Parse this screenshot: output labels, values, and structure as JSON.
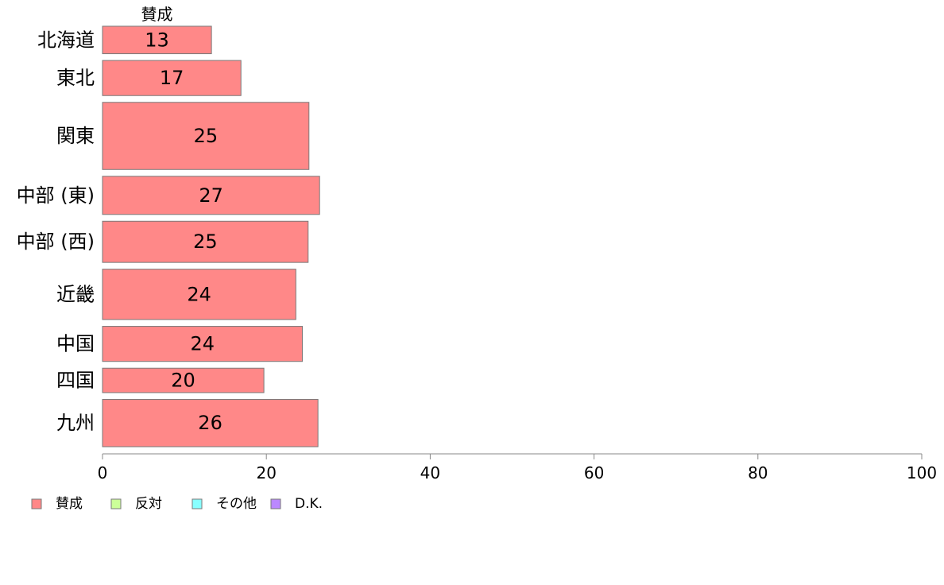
{
  "chart_data": {
    "type": "bar",
    "orientation": "horizontal",
    "stacked": true,
    "categories": [
      "北海道",
      "東北",
      "関東",
      "中部 (東)",
      "中部 (西)",
      "近畿",
      "中国",
      "四国",
      "九州"
    ],
    "category_weights": [
      0.9,
      1.15,
      2.2,
      1.25,
      1.35,
      1.65,
      1.15,
      0.8,
      1.55
    ],
    "series": [
      {
        "name": "賛成",
        "color": "#ff8888",
        "values": [
          13.3,
          16.9,
          25.2,
          26.5,
          25.1,
          23.6,
          24.4,
          19.7,
          26.3
        ],
        "labels": [
          "13",
          "17",
          "25",
          "27",
          "25",
          "24",
          "24",
          "20",
          "26"
        ]
      },
      {
        "name": "反対",
        "color": "#ccff99",
        "values": [
          0,
          0,
          0,
          0,
          0,
          0,
          0,
          0,
          0
        ],
        "labels": []
      },
      {
        "name": "その他",
        "color": "#88ffff",
        "values": [
          0,
          0,
          0,
          0,
          0,
          0,
          0,
          0,
          0
        ],
        "labels": []
      },
      {
        "name": "D.K.",
        "color": "#bb88ff",
        "values": [
          0,
          0,
          0,
          0,
          0,
          0,
          0,
          0,
          0
        ],
        "labels": []
      }
    ],
    "top_series_label": "賛成",
    "xlim": [
      0,
      100
    ],
    "xticks": [
      0,
      20,
      40,
      60,
      80,
      100
    ],
    "xtick_labels": [
      "0",
      "20",
      "40",
      "60",
      "80",
      "100"
    ],
    "grid": false,
    "legend_position": "bottom-left",
    "title": "",
    "xlabel": "",
    "ylabel": ""
  }
}
